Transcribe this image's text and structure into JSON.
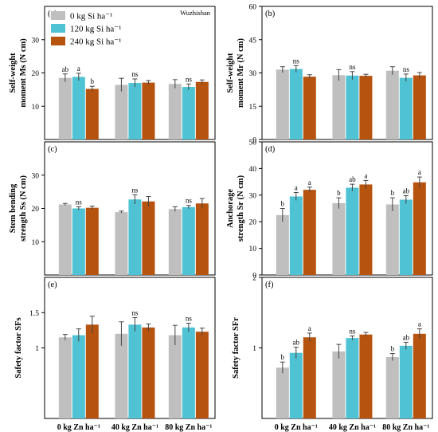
{
  "site_label": "Wuzhishan",
  "legend": [
    {
      "label": "0 kg Si ha⁻¹",
      "color": "#bfbfbf"
    },
    {
      "label": "120 kg Si ha⁻¹",
      "color": "#4fc3d3"
    },
    {
      "label": "240 kg Si ha⁻¹",
      "color": "#b5530f"
    }
  ],
  "chart_data": [
    {
      "type": "bar",
      "panel": "(a)",
      "ylabel": [
        "Self-weight",
        "moment  Ms (N cm)"
      ],
      "ylim": [
        0,
        40
      ],
      "yticks": [
        10,
        20,
        30
      ],
      "categories": [
        "0 kg Zn ha⁻¹",
        "40 kg Zn ha⁻¹",
        "80 kg Zn ha⁻¹"
      ],
      "series": [
        {
          "values": [
            18.5,
            16.4,
            16.7
          ],
          "errors": [
            1.2,
            2.0,
            1.3
          ]
        },
        {
          "values": [
            18.8,
            17.0,
            15.8
          ],
          "errors": [
            1.1,
            1.2,
            0.9
          ]
        },
        {
          "values": [
            15.2,
            17.1,
            17.3
          ],
          "errors": [
            0.8,
            0.6,
            0.6
          ]
        }
      ],
      "annotations": [
        [
          "ab",
          "a",
          "b"
        ],
        [
          "",
          "ns",
          ""
        ],
        [
          "",
          "ns",
          ""
        ]
      ]
    },
    {
      "type": "bar",
      "panel": "(b)",
      "ylabel": [
        "Self-weight",
        "moment Mr (N cm)"
      ],
      "ylim": [
        0,
        60
      ],
      "yticks": [
        0,
        15,
        30,
        45,
        60
      ],
      "categories": [
        "0 kg Zn ha⁻¹",
        "40 kg Zn ha⁻¹",
        "80 kg Zn ha⁻¹"
      ],
      "series": [
        {
          "values": [
            31.5,
            29.0,
            31.0
          ],
          "errors": [
            1.3,
            2.5,
            1.8
          ]
        },
        {
          "values": [
            31.8,
            28.8,
            27.8
          ],
          "errors": [
            1.5,
            1.8,
            1.7
          ]
        },
        {
          "values": [
            28.3,
            28.7,
            28.9
          ],
          "errors": [
            0.9,
            0.7,
            1.3
          ]
        }
      ],
      "annotations": [
        [
          "",
          "ns",
          ""
        ],
        [
          "",
          "ns",
          ""
        ],
        [
          "",
          "ns",
          ""
        ]
      ]
    },
    {
      "type": "bar",
      "panel": "(c)",
      "ylabel": [
        "Stem bending",
        "strength Ss (N cm)"
      ],
      "ylim": [
        0,
        40
      ],
      "yticks": [
        10,
        20,
        30
      ],
      "categories": [
        "0 kg Zn ha⁻¹",
        "40 kg Zn ha⁻¹",
        "80 kg Zn ha⁻¹"
      ],
      "series": [
        {
          "values": [
            21.2,
            18.9,
            19.8
          ],
          "errors": [
            0.3,
            0.3,
            0.7
          ]
        },
        {
          "values": [
            20.0,
            22.7,
            20.4
          ],
          "errors": [
            0.5,
            1.4,
            0.5
          ]
        },
        {
          "values": [
            20.2,
            22.1,
            21.5
          ],
          "errors": [
            0.5,
            1.5,
            1.5
          ]
        }
      ],
      "annotations": [
        [
          "",
          "ns",
          ""
        ],
        [
          "",
          "ns",
          ""
        ],
        [
          "",
          "ns",
          ""
        ]
      ]
    },
    {
      "type": "bar",
      "panel": "(d)",
      "ylabel": [
        "Anchorage",
        "strength Sr (N cm)"
      ],
      "ylim": [
        0,
        50
      ],
      "yticks": [
        0,
        10,
        20,
        30,
        40,
        50
      ],
      "categories": [
        "0 kg Zn ha⁻¹",
        "40 kg Zn ha⁻¹",
        "80 kg Zn ha⁻¹"
      ],
      "series": [
        {
          "values": [
            22.5,
            27.0,
            26.5
          ],
          "errors": [
            2.5,
            2.0,
            2.5
          ]
        },
        {
          "values": [
            29.5,
            32.8,
            28.3
          ],
          "errors": [
            1.5,
            1.3,
            1.5
          ]
        },
        {
          "values": [
            32.0,
            34.0,
            34.8
          ],
          "errors": [
            1.0,
            1.5,
            2.0
          ]
        }
      ],
      "annotations": [
        [
          "b",
          "a",
          "a"
        ],
        [
          "b",
          "ab",
          "a"
        ],
        [
          "b",
          "ab",
          "a"
        ]
      ]
    },
    {
      "type": "bar",
      "panel": "(e)",
      "ylabel": [
        "Safety factor SFs"
      ],
      "ylim": [
        0,
        2
      ],
      "yticks": [
        1,
        1.5
      ],
      "categories": [
        "0 kg Zn ha⁻¹",
        "40 kg Zn ha⁻¹",
        "80 kg Zn ha⁻¹"
      ],
      "series": [
        {
          "values": [
            1.15,
            1.2,
            1.18
          ],
          "errors": [
            0.04,
            0.17,
            0.14
          ]
        },
        {
          "values": [
            1.18,
            1.33,
            1.29
          ],
          "errors": [
            0.09,
            0.1,
            0.06
          ]
        },
        {
          "values": [
            1.33,
            1.29,
            1.23
          ],
          "errors": [
            0.12,
            0.05,
            0.05
          ]
        }
      ],
      "annotations": [
        [
          "",
          "",
          ""
        ],
        [
          "",
          "ns",
          ""
        ],
        [
          "",
          "ns",
          ""
        ]
      ]
    },
    {
      "type": "bar",
      "panel": "(f)",
      "ylabel": [
        "Safety factor SFr"
      ],
      "ylim": [
        0,
        2
      ],
      "yticks": [
        1,
        2
      ],
      "categories": [
        "0 kg Zn ha⁻¹",
        "40 kg Zn ha⁻¹",
        "80 kg Zn ha⁻¹"
      ],
      "series": [
        {
          "values": [
            0.72,
            0.95,
            0.87
          ],
          "errors": [
            0.08,
            0.1,
            0.05
          ]
        },
        {
          "values": [
            0.93,
            1.14,
            1.03
          ],
          "errors": [
            0.08,
            0.03,
            0.05
          ]
        },
        {
          "values": [
            1.15,
            1.19,
            1.2
          ],
          "errors": [
            0.06,
            0.03,
            0.07
          ]
        }
      ],
      "annotations": [
        [
          "b",
          "ab",
          "a"
        ],
        [
          "",
          "ns",
          ""
        ],
        [
          "b",
          "ab",
          "a"
        ]
      ]
    }
  ]
}
